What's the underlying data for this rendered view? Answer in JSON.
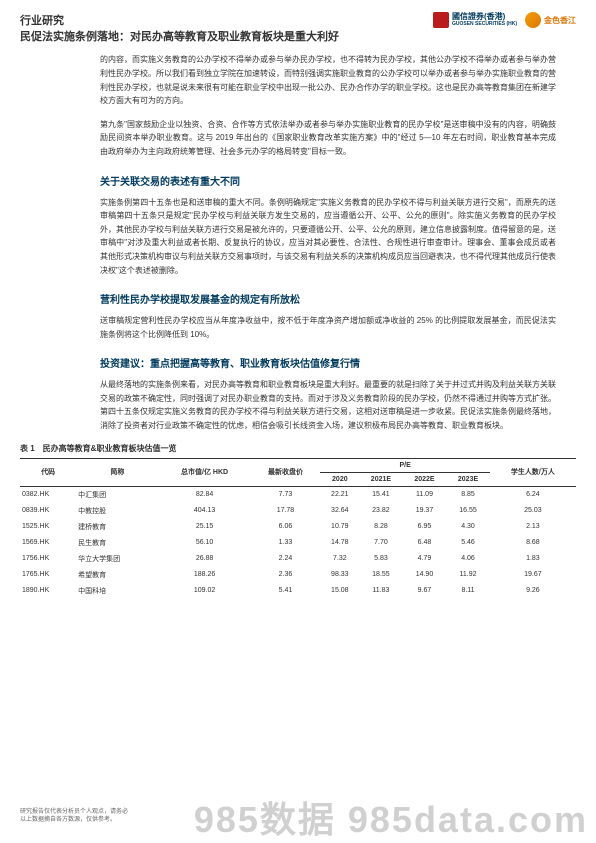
{
  "header": {
    "category": "行业研究",
    "title": "民促法实施条例落地：对民办高等教育及职业教育板块是重大利好",
    "logo1_name": "國信證券(香港)",
    "logo1_sub": "GUOSEN SECURITIES (HK)",
    "logo2_name": "金色香江",
    "logo1_color": "#b91c1c",
    "logo1_text_color": "#003a5d",
    "logo2_color": "#d97706"
  },
  "body": {
    "p1": "的内容，而实施义务教育的公办学校不得举办或参与举办民办学校，也不得转为民办学校，其他公办学校不得举办或者参与举办营利性民办学校。所以我们看到独立学院在加速转设，而特别强调实施职业教育的公办学校可以举办或者参与举办实施职业教育的营利性民办学校，也就是说未来很有可能在职业学校中出现一批公办、民办合作办学的职业学校。这也是民办高等教育集团在新建学校方面大有可为的方向。",
    "p2": "第九条\"国家鼓励企业以独资、合资、合作等方式依法举办或者参与举办实施职业教育的民办学校\"是送审稿中没有的内容，明确鼓励民间资本举办职业教育。这与 2019 年出台的《国家职业教育改革实施方案》中的\"经过 5—10 年左右时间，职业教育基本完成由政府举办为主向政府统筹管理、社会多元办学的格局转变\"目标一致。",
    "h1": "关于关联交易的表述有重大不同",
    "p3": "实施条例第四十五条也是和送审稿的重大不同。条例明确规定\"实施义务教育的民办学校不得与利益关联方进行交易\"，而原先的送审稿第四十五条只是规定\"民办学校与利益关联方发生交易的，应当遵循公开、公平、公允的原则\"。除实施义务教育的民办学校外，其他民办学校与利益关联方进行交易是被允许的，只要遵循公开、公平、公允的原则，建立信息披露制度。值得留意的是，送审稿中\"对涉及重大利益或者长期、反复执行的协议，应当对其必要性、合法性、合规性进行审查审计。理事会、董事会成员或者其他形式决策机构审议与利益关联方交易事项时，与该交易有利益关系的决策机构成员应当回避表决，也不得代理其他成员行使表决权\"这个表述被删除。",
    "h2": "营利性民办学校提取发展基金的规定有所放松",
    "p4": "送审稿规定营利性民办学校应当从年度净收益中，按不低于年度净资产增加额或净收益的 25% 的比例提取发展基金，而民促法实施条例将这个比例降低到 10%。",
    "h3": "投资建议：重点把握高等教育、职业教育板块估值修复行情",
    "p5": "从最终落地的实施条例来看，对民办高等教育和职业教育板块是重大利好。最重要的就是扫除了关于并过式并购及利益关联方关联交易的政策不确定性，同时强调了对民办职业教育的支持。而对于涉及义务教育阶段的民办学校，仍然不得通过并购等方式扩张。第四十五条仅规定实施义务教育的民办学校不得与利益关联方进行交易，这相对送审稿是进一步收紧。民促法实施条例最终落地，消除了投资者对行业政策不确定性的忧虑，相信会吸引长线资金入场，建议积极布局民办高等教育、职业教育板块。"
  },
  "table": {
    "title": "表 1　民办高等教育&职业教育板块估值一览",
    "headers": {
      "code": "代码",
      "name": "简称",
      "mcap": "总市值/亿 HKD",
      "price": "最新收盘价",
      "pe": "P/E",
      "y2020": "2020",
      "y2021": "2021E",
      "y2022": "2022E",
      "y2023": "2023E",
      "students": "学生人数/万人"
    },
    "rows": [
      {
        "code": "0382.HK",
        "name": "中汇集团",
        "mcap": "82.84",
        "price": "7.73",
        "y2020": "22.21",
        "y2021": "15.41",
        "y2022": "11.09",
        "y2023": "8.85",
        "students": "6.24"
      },
      {
        "code": "0839.HK",
        "name": "中教控股",
        "mcap": "404.13",
        "price": "17.78",
        "y2020": "32.64",
        "y2021": "23.82",
        "y2022": "19.37",
        "y2023": "16.55",
        "students": "25.03"
      },
      {
        "code": "1525.HK",
        "name": "建桥教育",
        "mcap": "25.15",
        "price": "6.06",
        "y2020": "10.79",
        "y2021": "8.28",
        "y2022": "6.95",
        "y2023": "4.30",
        "students": "2.13"
      },
      {
        "code": "1569.HK",
        "name": "民生教育",
        "mcap": "56.10",
        "price": "1.33",
        "y2020": "14.78",
        "y2021": "7.70",
        "y2022": "6.48",
        "y2023": "5.46",
        "students": "8.68"
      },
      {
        "code": "1756.HK",
        "name": "华立大学集团",
        "mcap": "26.88",
        "price": "2.24",
        "y2020": "7.32",
        "y2021": "5.83",
        "y2022": "4.79",
        "y2023": "4.06",
        "students": "1.83"
      },
      {
        "code": "1765.HK",
        "name": "希望教育",
        "mcap": "188.26",
        "price": "2.36",
        "y2020": "98.33",
        "y2021": "18.55",
        "y2022": "14.90",
        "y2023": "11.92",
        "students": "19.67"
      },
      {
        "code": "1890.HK",
        "name": "中国科培",
        "mcap": "109.02",
        "price": "5.41",
        "y2020": "15.08",
        "y2021": "11.83",
        "y2022": "9.67",
        "y2023": "8.11",
        "students": "9.26"
      }
    ]
  },
  "footer": {
    "disclaimer1": "研究报告仅代表分析员个人观点，请务必",
    "disclaimer2": "以上数据摘自各方数源，仅供参考。",
    "watermark": "985数据 985data.com"
  },
  "colors": {
    "heading": "#003a5d",
    "text": "#333333",
    "wm": "#d0d0d0"
  }
}
